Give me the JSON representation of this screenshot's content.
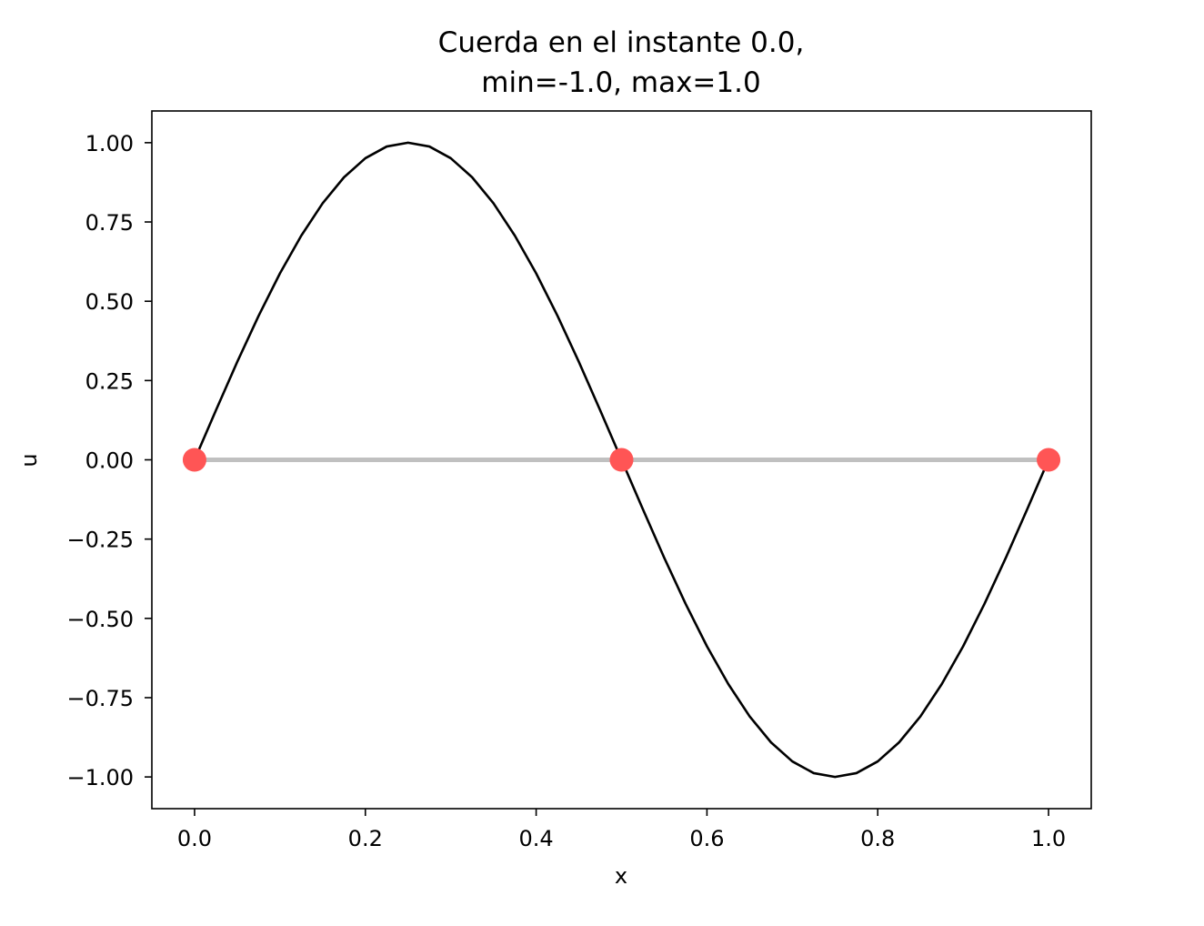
{
  "chart_data": {
    "type": "line",
    "title_lines": [
      "Cuerda en el instante 0.0,",
      "min=-1.0, max=1.0"
    ],
    "xlabel": "x",
    "ylabel": "u",
    "xlim": [
      -0.05,
      1.05
    ],
    "ylim": [
      -1.1,
      1.1
    ],
    "x_ticks": [
      0.0,
      0.2,
      0.4,
      0.6,
      0.8,
      1.0
    ],
    "x_tick_labels": [
      "0.0",
      "0.2",
      "0.4",
      "0.6",
      "0.8",
      "1.0"
    ],
    "y_ticks": [
      1.0,
      0.75,
      0.5,
      0.25,
      0.0,
      -0.25,
      -0.5,
      -0.75,
      -1.0
    ],
    "y_tick_labels": [
      "1.00",
      "0.75",
      "0.50",
      "0.25",
      "0.00",
      "−0.25",
      "−0.50",
      "−0.75",
      "−1.00"
    ],
    "grid": false,
    "series": [
      {
        "style": "line",
        "color": "#000000",
        "x": [
          0.0,
          0.025,
          0.05,
          0.075,
          0.1,
          0.125,
          0.15,
          0.175,
          0.2,
          0.225,
          0.25,
          0.275,
          0.3,
          0.325,
          0.35,
          0.375,
          0.4,
          0.425,
          0.45,
          0.475,
          0.5,
          0.525,
          0.55,
          0.575,
          0.6,
          0.625,
          0.65,
          0.675,
          0.7,
          0.725,
          0.75,
          0.775,
          0.8,
          0.825,
          0.85,
          0.875,
          0.9,
          0.925,
          0.95,
          0.975,
          1.0
        ],
        "y": [
          0.0,
          0.156,
          0.309,
          0.454,
          0.588,
          0.707,
          0.809,
          0.891,
          0.951,
          0.988,
          1.0,
          0.988,
          0.951,
          0.891,
          0.809,
          0.707,
          0.588,
          0.454,
          0.309,
          0.156,
          0.0,
          -0.156,
          -0.309,
          -0.454,
          -0.588,
          -0.707,
          -0.809,
          -0.891,
          -0.951,
          -0.988,
          -1.0,
          -0.988,
          -0.951,
          -0.891,
          -0.809,
          -0.707,
          -0.588,
          -0.454,
          -0.309,
          -0.156,
          0.0
        ]
      },
      {
        "style": "line",
        "color": "#c0c0c0",
        "x": [
          0.0,
          1.0
        ],
        "y": [
          0.0,
          0.0
        ]
      },
      {
        "style": "scatter",
        "color": "#ff5555",
        "x": [
          0.0,
          0.5,
          1.0
        ],
        "y": [
          0.0,
          0.0,
          0.0
        ]
      }
    ]
  }
}
